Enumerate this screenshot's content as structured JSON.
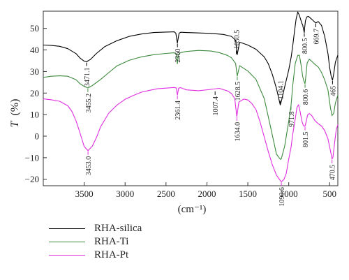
{
  "chart_data": {
    "type": "line",
    "title": "",
    "xlabel": "(cm⁻¹)",
    "ylabel_symbol": "T",
    "ylabel_unit": "(%)",
    "xlim": [
      4000,
      400
    ],
    "ylim": [
      -23,
      58
    ],
    "x_reversed": true,
    "grid": false,
    "legend_position": "below",
    "x_ticks": [
      3500,
      3000,
      2500,
      2000,
      1500,
      1000,
      500
    ],
    "y_ticks": [
      -20,
      -10,
      0,
      10,
      20,
      30,
      40,
      50
    ],
    "series": [
      {
        "name": "RHA-silica",
        "color": "#000000",
        "x": [
          4000,
          3900,
          3800,
          3700,
          3600,
          3550,
          3500,
          3471,
          3420,
          3350,
          3250,
          3100,
          2950,
          2800,
          2650,
          2500,
          2400,
          2380,
          2361,
          2340,
          2320,
          2250,
          2100,
          1950,
          1800,
          1700,
          1650,
          1629,
          1600,
          1500,
          1400,
          1300,
          1250,
          1200,
          1150,
          1104,
          1090,
          1050,
          1000,
          970,
          950,
          930,
          910,
          890,
          870,
          855,
          840,
          830,
          810,
          805,
          795,
          780,
          760,
          720,
          700,
          670,
          640,
          600,
          560,
          520,
          500,
          480,
          465,
          450,
          430,
          400
        ],
        "y": [
          42.3,
          42.1,
          41.7,
          40.6,
          38.3,
          36.2,
          34.8,
          34.5,
          35.7,
          38.4,
          41.5,
          44.3,
          46.3,
          47.4,
          48.1,
          48.3,
          48.4,
          47.8,
          43.2,
          47.8,
          48.2,
          48.1,
          47.9,
          47.7,
          47.2,
          46.3,
          44.6,
          37.8,
          43.6,
          42.3,
          40.3,
          36.8,
          33.6,
          28.6,
          22.1,
          14.5,
          16.2,
          22.8,
          30.8,
          36.8,
          42.2,
          48.6,
          54.3,
          57.6,
          56.1,
          54.2,
          52.4,
          51.6,
          48.1,
          50.4,
          53.7,
          55.3,
          55.6,
          54.3,
          53.6,
          52.5,
          53.2,
          51.4,
          46.3,
          38.2,
          31.8,
          27.6,
          26.0,
          28.9,
          34.3,
          37.6
        ]
      },
      {
        "name": "RHA-Ti",
        "color": "#3d8a3d",
        "x": [
          4000,
          3900,
          3800,
          3700,
          3600,
          3550,
          3500,
          3455,
          3400,
          3300,
          3200,
          3100,
          2950,
          2800,
          2650,
          2500,
          2400,
          2375,
          2361,
          2345,
          2320,
          2250,
          2100,
          1950,
          1850,
          1750,
          1700,
          1650,
          1629,
          1600,
          1500,
          1400,
          1300,
          1250,
          1200,
          1150,
          1100,
          1090,
          1050,
          1000,
          972,
          950,
          920,
          890,
          870,
          850,
          830,
          815,
          801,
          790,
          775,
          750,
          720,
          680,
          640,
          600,
          560,
          520,
          490,
          471,
          450,
          430,
          400
        ],
        "y": [
          27.3,
          27.8,
          28.0,
          27.8,
          26.2,
          24.3,
          23.1,
          22.4,
          23.5,
          26.3,
          29.5,
          32.6,
          35.2,
          36.8,
          37.8,
          38.4,
          38.7,
          38.2,
          33.6,
          38.1,
          38.8,
          39.3,
          39.8,
          39.5,
          38.8,
          37.5,
          36.4,
          33.8,
          27.9,
          32.7,
          30.2,
          26.3,
          17.5,
          9.0,
          0.4,
          -8.4,
          -10.8,
          -10.4,
          -4.7,
          7.0,
          14.1,
          23.8,
          33.8,
          37.5,
          37.6,
          33.1,
          27.8,
          25.5,
          24.4,
          28.1,
          33.9,
          35.7,
          34.8,
          33.3,
          32.1,
          29.6,
          26.1,
          21.4,
          13.2,
          9.6,
          10.6,
          15.4,
          19.0
        ]
      },
      {
        "name": "RHA-Pt",
        "color": "#e02ee0",
        "x": [
          4000,
          3900,
          3800,
          3700,
          3650,
          3600,
          3550,
          3500,
          3453,
          3400,
          3350,
          3300,
          3200,
          3100,
          3000,
          2900,
          2800,
          2700,
          2600,
          2500,
          2400,
          2375,
          2361,
          2345,
          2320,
          2250,
          2100,
          1950,
          1850,
          1750,
          1700,
          1660,
          1634,
          1610,
          1550,
          1500,
          1450,
          1400,
          1350,
          1300,
          1250,
          1200,
          1150,
          1100,
          1090,
          1060,
          1030,
          1000,
          972,
          950,
          920,
          900,
          880,
          860,
          840,
          820,
          801,
          785,
          770,
          750,
          720,
          680,
          640,
          600,
          560,
          520,
          490,
          471,
          460,
          440,
          420,
          400
        ],
        "y": [
          17.3,
          16.9,
          16.2,
          14.1,
          11.5,
          7.2,
          1.3,
          -4.8,
          -6.7,
          -4.6,
          -0.6,
          4.3,
          10.7,
          14.4,
          17.1,
          18.9,
          20.4,
          21.3,
          22.0,
          22.3,
          22.6,
          22.4,
          19.1,
          22.3,
          22.5,
          21.5,
          21.1,
          21.7,
          22.2,
          21.0,
          19.8,
          17.5,
          9.1,
          15.8,
          17.2,
          16.8,
          15.1,
          12.3,
          6.6,
          -0.3,
          -7.2,
          -13.3,
          -18.1,
          -20.7,
          -21.1,
          -20.2,
          -17.3,
          -10.6,
          -5.3,
          1.1,
          8.0,
          13.3,
          14.6,
          11.2,
          7.1,
          4.8,
          4.7,
          7.0,
          9.8,
          10.5,
          9.6,
          7.2,
          5.8,
          4.7,
          2.6,
          -1.3,
          -6.7,
          -10.6,
          -9.8,
          -3.3,
          3.0,
          5.3
        ]
      }
    ],
    "annotations": [
      {
        "text": "3471.1",
        "x": 3471,
        "y": 34.5,
        "color": "#000000",
        "placement": "below"
      },
      {
        "text": "2360",
        "x": 2360,
        "y": 43.2,
        "color": "#000000",
        "placement": "below"
      },
      {
        "text": "1650.5",
        "x": 1640,
        "y": 37.8,
        "color": "#000000",
        "placement": "above"
      },
      {
        "text": "1104.1",
        "x": 1104,
        "y": 14.5,
        "color": "#000000",
        "placement": "above"
      },
      {
        "text": "800.5",
        "x": 810,
        "y": 48.1,
        "color": "#000000",
        "placement": "below"
      },
      {
        "text": "669.7",
        "x": 670,
        "y": 52.5,
        "color": "#000000",
        "placement": "below"
      },
      {
        "text": "465",
        "x": 465,
        "y": 26.0,
        "color": "#000000",
        "placement": "below"
      },
      {
        "text": "3455.2",
        "x": 3455,
        "y": 22.4,
        "color": "#3d8a3d",
        "placement": "below"
      },
      {
        "text": "2361.4",
        "x": 2361,
        "y": 19.1,
        "color": "#e02ee0",
        "placement": "below"
      },
      {
        "text": "1007.4",
        "x": 1900,
        "y": 21.1,
        "color": "#000000",
        "placement": "below"
      },
      {
        "text": "1628.5",
        "x": 1629,
        "y": 27.9,
        "color": "#3d8a3d",
        "placement": "below"
      },
      {
        "text": "800.6",
        "x": 801,
        "y": 24.4,
        "color": "#3d8a3d",
        "placement": "below"
      },
      {
        "text": "971.8",
        "x": 972,
        "y": 14.1,
        "color": "#3d8a3d",
        "placement": "below"
      },
      {
        "text": "1634.0",
        "x": 1634,
        "y": 9.1,
        "color": "#e02ee0",
        "placement": "below"
      },
      {
        "text": "801.5",
        "x": 801,
        "y": 4.7,
        "color": "#e02ee0",
        "placement": "below"
      },
      {
        "text": "1090.6",
        "x": 1090,
        "y": -21.1,
        "color": "#e02ee0",
        "placement": "below"
      },
      {
        "text": "3453.0",
        "x": 3453,
        "y": -6.7,
        "color": "#e02ee0",
        "placement": "below"
      },
      {
        "text": "470.5",
        "x": 471,
        "y": -10.6,
        "color": "#e02ee0",
        "placement": "below"
      }
    ]
  }
}
